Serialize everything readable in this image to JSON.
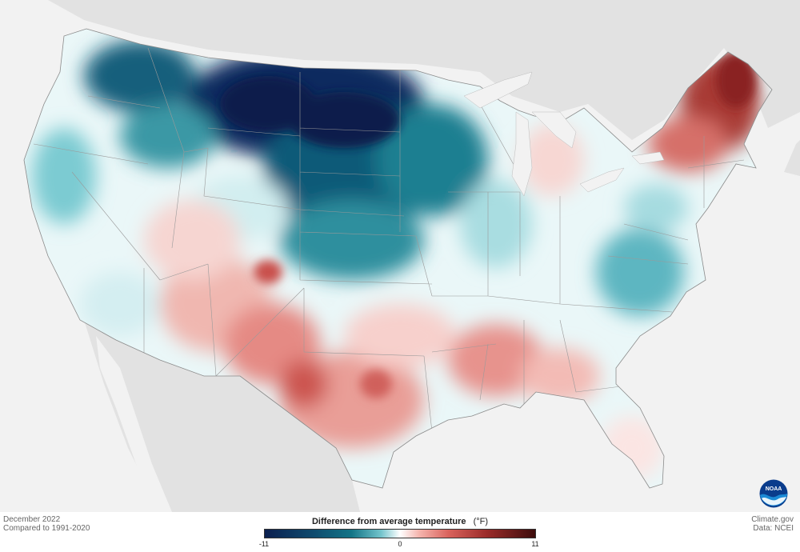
{
  "footer": {
    "period": "December 2022",
    "baseline": "Compared to 1991-2020",
    "source_site": "Climate.gov",
    "data_source": "Data: NCEI"
  },
  "legend": {
    "title": "Difference from average temperature",
    "unit": "(°F)",
    "min": -11,
    "mid": 0,
    "max": 11,
    "min_label": "-11",
    "mid_label": "0",
    "max_label": "11",
    "colors": [
      "#0b1f4f",
      "#0f4b6e",
      "#127486",
      "#73c4cc",
      "#ffffff",
      "#f5b5ae",
      "#d9625c",
      "#9b2c2a",
      "#3d0b0b"
    ]
  },
  "logo": {
    "text": "NOAA"
  },
  "map": {
    "land_color": "#f7f7f7",
    "surrounding_land_color": "#e2e2e2",
    "water_color": "#f2f2f2"
  }
}
